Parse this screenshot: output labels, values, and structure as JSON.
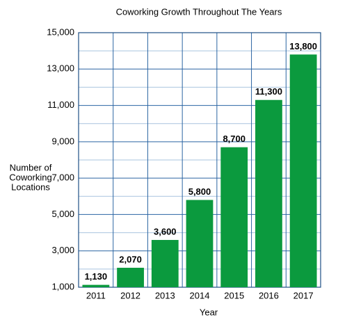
{
  "chart_data": {
    "type": "bar",
    "title": "Coworking Growth Throughout The Years",
    "x_label": "Year",
    "y_label": [
      "Number of",
      "Coworking",
      "Locations"
    ],
    "categories": [
      "2011",
      "2012",
      "2013",
      "2014",
      "2015",
      "2016",
      "2017"
    ],
    "values": [
      1130,
      2070,
      3600,
      5800,
      8700,
      11300,
      13800
    ],
    "value_labels": [
      "1,130",
      "2,070",
      "3,600",
      "5,800",
      "8,700",
      "11,300",
      "13,800"
    ],
    "color": "#0b9a3e",
    "ylim": [
      1000,
      15000
    ],
    "yticks": [
      {
        "value": 1000,
        "label": "1,000"
      },
      {
        "value": 3000,
        "label": "3,000"
      },
      {
        "value": 5000,
        "label": "5,000"
      },
      {
        "value": 7000,
        "label": "7,000"
      },
      {
        "value": 9000,
        "label": "9,000"
      },
      {
        "value": 11000,
        "label": "11,000"
      },
      {
        "value": 13000,
        "label": "13,000"
      },
      {
        "value": 15000,
        "label": "15,000"
      }
    ],
    "grid": true
  }
}
